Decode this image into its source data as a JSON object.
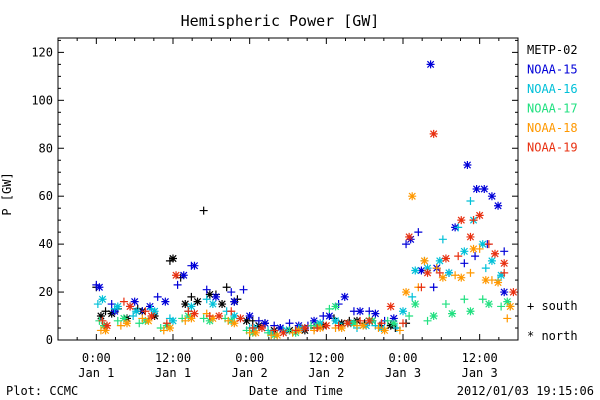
{
  "chart_data": {
    "type": "scatter",
    "title": "Hemispheric Power [GW]",
    "xlabel": "Date and Time",
    "ylabel": "P [GW]",
    "xlim": [
      -0.25,
      2.75
    ],
    "ylim": [
      0,
      126
    ],
    "grid": false,
    "legend_position": "right",
    "y_ticks": [
      {
        "value": 0,
        "label": "0"
      },
      {
        "value": 20,
        "label": "20"
      },
      {
        "value": 40,
        "label": "40"
      },
      {
        "value": 60,
        "label": "60"
      },
      {
        "value": 80,
        "label": "80"
      },
      {
        "value": 100,
        "label": "100"
      },
      {
        "value": 120,
        "label": "120"
      }
    ],
    "x_ticks": [
      {
        "value": 0.0,
        "line1": "0:00",
        "line2": "Jan 1"
      },
      {
        "value": 0.5,
        "line1": "12:00",
        "line2": "Jan 1"
      },
      {
        "value": 1.0,
        "line1": "0:00",
        "line2": "Jan 2"
      },
      {
        "value": 1.5,
        "line1": "12:00",
        "line2": "Jan 2"
      },
      {
        "value": 2.0,
        "line1": "0:00",
        "line2": "Jan 3"
      },
      {
        "value": 2.5,
        "line1": "12:00",
        "line2": "Jan 3"
      }
    ],
    "markers_legend": [
      {
        "symbol": "+",
        "label": "south"
      },
      {
        "symbol": "*",
        "label": "north"
      }
    ],
    "series": [
      {
        "name": "METP-02",
        "color": "#000000",
        "south": [
          [
            0.0,
            22
          ],
          [
            0.06,
            12
          ],
          [
            0.14,
            13
          ],
          [
            0.27,
            13
          ],
          [
            0.48,
            33
          ],
          [
            0.55,
            26
          ],
          [
            0.62,
            18
          ],
          [
            0.7,
            54
          ],
          [
            0.78,
            19
          ],
          [
            0.85,
            22
          ],
          [
            0.92,
            17
          ],
          [
            1.02,
            8
          ],
          [
            1.1,
            7
          ],
          [
            1.2,
            5
          ],
          [
            1.3,
            4
          ],
          [
            1.42,
            5
          ],
          [
            1.55,
            9
          ],
          [
            1.65,
            8
          ],
          [
            1.75,
            7
          ],
          [
            1.85,
            6
          ],
          [
            1.95,
            5
          ],
          [
            2.02,
            7
          ]
        ],
        "north": [
          [
            0.03,
            10
          ],
          [
            0.1,
            11
          ],
          [
            0.2,
            9
          ],
          [
            0.3,
            12
          ],
          [
            0.38,
            10
          ],
          [
            0.5,
            34
          ],
          [
            0.58,
            15
          ],
          [
            0.66,
            16
          ],
          [
            0.74,
            19
          ],
          [
            0.82,
            15
          ],
          [
            0.9,
            16
          ],
          [
            0.98,
            8
          ],
          [
            1.06,
            6
          ],
          [
            1.16,
            4
          ],
          [
            1.26,
            4
          ],
          [
            1.36,
            4
          ],
          [
            1.48,
            6
          ],
          [
            1.6,
            7
          ],
          [
            1.7,
            8
          ],
          [
            1.8,
            8
          ],
          [
            1.92,
            6
          ]
        ]
      },
      {
        "name": "NOAA-15",
        "color": "#0000d8",
        "south": [
          [
            0.0,
            23
          ],
          [
            0.1,
            15
          ],
          [
            0.22,
            14
          ],
          [
            0.3,
            12
          ],
          [
            0.4,
            18
          ],
          [
            0.53,
            23
          ],
          [
            0.62,
            31
          ],
          [
            0.72,
            21
          ],
          [
            0.88,
            20
          ],
          [
            0.96,
            21
          ],
          [
            1.06,
            8
          ],
          [
            1.16,
            6
          ],
          [
            1.26,
            7
          ],
          [
            1.38,
            6
          ],
          [
            1.48,
            10
          ],
          [
            1.58,
            15
          ],
          [
            1.68,
            12
          ],
          [
            1.78,
            12
          ],
          [
            1.88,
            8
          ],
          [
            2.02,
            40
          ],
          [
            2.1,
            45
          ],
          [
            2.2,
            22
          ],
          [
            2.3,
            28
          ],
          [
            2.4,
            32
          ],
          [
            2.47,
            35
          ],
          [
            2.55,
            40
          ],
          [
            2.66,
            37
          ]
        ],
        "north": [
          [
            0.02,
            22
          ],
          [
            0.12,
            12
          ],
          [
            0.25,
            16
          ],
          [
            0.35,
            14
          ],
          [
            0.45,
            16
          ],
          [
            0.57,
            27
          ],
          [
            0.64,
            31
          ],
          [
            0.78,
            18
          ],
          [
            0.9,
            16
          ],
          [
            1.0,
            10
          ],
          [
            1.1,
            7
          ],
          [
            1.2,
            5
          ],
          [
            1.32,
            6
          ],
          [
            1.42,
            8
          ],
          [
            1.52,
            10
          ],
          [
            1.62,
            18
          ],
          [
            1.72,
            12
          ],
          [
            1.82,
            11
          ],
          [
            1.94,
            9
          ],
          [
            2.05,
            42
          ],
          [
            2.12,
            29
          ],
          [
            2.18,
            115
          ],
          [
            2.22,
            30
          ],
          [
            2.34,
            47
          ],
          [
            2.42,
            73
          ],
          [
            2.48,
            63
          ],
          [
            2.53,
            63
          ],
          [
            2.58,
            60
          ],
          [
            2.62,
            56
          ],
          [
            2.66,
            20
          ]
        ]
      },
      {
        "name": "NOAA-16",
        "color": "#00c0d8",
        "south": [
          [
            0.01,
            15
          ],
          [
            0.12,
            13
          ],
          [
            0.24,
            10
          ],
          [
            0.36,
            13
          ],
          [
            0.48,
            9
          ],
          [
            0.6,
            12
          ],
          [
            0.72,
            17
          ],
          [
            0.85,
            12
          ],
          [
            1.0,
            5
          ],
          [
            1.12,
            4
          ],
          [
            1.22,
            4
          ],
          [
            1.32,
            5
          ],
          [
            1.45,
            6
          ],
          [
            1.58,
            7
          ],
          [
            1.7,
            5
          ],
          [
            1.82,
            6
          ],
          [
            1.96,
            5
          ],
          [
            2.06,
            18
          ],
          [
            2.14,
            33
          ],
          [
            2.26,
            42
          ],
          [
            2.36,
            47
          ],
          [
            2.44,
            58
          ],
          [
            2.54,
            30
          ],
          [
            2.62,
            25
          ],
          [
            2.7,
            14
          ]
        ],
        "north": [
          [
            0.04,
            17
          ],
          [
            0.14,
            14
          ],
          [
            0.26,
            12
          ],
          [
            0.38,
            12
          ],
          [
            0.5,
            8
          ],
          [
            0.62,
            14
          ],
          [
            0.76,
            15
          ],
          [
            0.9,
            10
          ],
          [
            1.03,
            5
          ],
          [
            1.14,
            3
          ],
          [
            1.24,
            4
          ],
          [
            1.34,
            5
          ],
          [
            1.46,
            7
          ],
          [
            1.56,
            8
          ],
          [
            1.66,
            7
          ],
          [
            1.76,
            6
          ],
          [
            1.86,
            5
          ],
          [
            2.0,
            12
          ],
          [
            2.08,
            29
          ],
          [
            2.16,
            30
          ],
          [
            2.24,
            33
          ],
          [
            2.3,
            28
          ],
          [
            2.4,
            37
          ],
          [
            2.46,
            50
          ],
          [
            2.52,
            40
          ],
          [
            2.58,
            33
          ],
          [
            2.64,
            27
          ]
        ]
      },
      {
        "name": "NOAA-17",
        "color": "#20e080",
        "south": [
          [
            0.02,
            8
          ],
          [
            0.14,
            8
          ],
          [
            0.28,
            7
          ],
          [
            0.42,
            5
          ],
          [
            0.56,
            9
          ],
          [
            0.7,
            9
          ],
          [
            0.84,
            9
          ],
          [
            0.98,
            4
          ],
          [
            1.12,
            3
          ],
          [
            1.26,
            4
          ],
          [
            1.4,
            6
          ],
          [
            1.52,
            13
          ],
          [
            1.64,
            7
          ],
          [
            1.78,
            9
          ],
          [
            1.9,
            8
          ],
          [
            2.04,
            10
          ],
          [
            2.16,
            8
          ],
          [
            2.28,
            15
          ],
          [
            2.4,
            17
          ],
          [
            2.52,
            17
          ],
          [
            2.64,
            14
          ]
        ],
        "north": [
          [
            0.05,
            6
          ],
          [
            0.18,
            9
          ],
          [
            0.32,
            8
          ],
          [
            0.46,
            6
          ],
          [
            0.6,
            10
          ],
          [
            0.74,
            8
          ],
          [
            0.88,
            8
          ],
          [
            1.02,
            3
          ],
          [
            1.16,
            2
          ],
          [
            1.3,
            3
          ],
          [
            1.44,
            6
          ],
          [
            1.56,
            14
          ],
          [
            1.68,
            7
          ],
          [
            1.8,
            8
          ],
          [
            1.94,
            7
          ],
          [
            2.08,
            15
          ],
          [
            2.2,
            10
          ],
          [
            2.32,
            11
          ],
          [
            2.44,
            12
          ],
          [
            2.56,
            15
          ],
          [
            2.68,
            16
          ]
        ]
      },
      {
        "name": "NOAA-18",
        "color": "#ff9800",
        "south": [
          [
            0.03,
            4
          ],
          [
            0.16,
            6
          ],
          [
            0.3,
            9
          ],
          [
            0.44,
            4
          ],
          [
            0.58,
            8
          ],
          [
            0.72,
            11
          ],
          [
            0.86,
            8
          ],
          [
            1.0,
            3
          ],
          [
            1.14,
            2
          ],
          [
            1.28,
            3
          ],
          [
            1.42,
            4
          ],
          [
            1.56,
            5
          ],
          [
            1.7,
            6
          ],
          [
            1.84,
            5
          ],
          [
            1.98,
            4
          ],
          [
            2.1,
            22
          ],
          [
            2.22,
            30
          ],
          [
            2.34,
            27
          ],
          [
            2.44,
            28
          ],
          [
            2.5,
            38
          ],
          [
            2.58,
            25
          ],
          [
            2.68,
            9
          ]
        ],
        "north": [
          [
            0.06,
            4
          ],
          [
            0.2,
            7
          ],
          [
            0.34,
            8
          ],
          [
            0.48,
            5
          ],
          [
            0.62,
            9
          ],
          [
            0.76,
            9
          ],
          [
            0.9,
            7
          ],
          [
            1.04,
            3
          ],
          [
            1.18,
            2
          ],
          [
            1.32,
            4
          ],
          [
            1.46,
            5
          ],
          [
            1.6,
            5
          ],
          [
            1.74,
            6
          ],
          [
            1.88,
            4
          ],
          [
            2.02,
            20
          ],
          [
            2.06,
            60
          ],
          [
            2.14,
            33
          ],
          [
            2.26,
            26
          ],
          [
            2.38,
            26
          ],
          [
            2.46,
            38
          ],
          [
            2.54,
            25
          ],
          [
            2.62,
            24
          ],
          [
            2.7,
            14
          ]
        ]
      },
      {
        "name": "NOAA-19",
        "color": "#e83010",
        "south": [
          [
            0.04,
            8
          ],
          [
            0.18,
            16
          ],
          [
            0.32,
            12
          ],
          [
            0.46,
            7
          ],
          [
            0.6,
            12
          ],
          [
            0.74,
            10
          ],
          [
            0.88,
            12
          ],
          [
            1.02,
            5
          ],
          [
            1.16,
            4
          ],
          [
            1.3,
            4
          ],
          [
            1.44,
            5
          ],
          [
            1.58,
            6
          ],
          [
            1.72,
            8
          ],
          [
            1.86,
            7
          ],
          [
            2.0,
            7
          ],
          [
            2.12,
            22
          ],
          [
            2.24,
            28
          ],
          [
            2.36,
            35
          ],
          [
            2.46,
            50
          ],
          [
            2.56,
            40
          ],
          [
            2.66,
            28
          ]
        ],
        "north": [
          [
            0.07,
            6
          ],
          [
            0.22,
            14
          ],
          [
            0.36,
            10
          ],
          [
            0.52,
            27
          ],
          [
            0.64,
            11
          ],
          [
            0.8,
            10
          ],
          [
            0.94,
            9
          ],
          [
            1.08,
            5
          ],
          [
            1.22,
            3
          ],
          [
            1.36,
            5
          ],
          [
            1.5,
            6
          ],
          [
            1.64,
            7
          ],
          [
            1.78,
            8
          ],
          [
            1.92,
            14
          ],
          [
            2.04,
            43
          ],
          [
            2.16,
            28
          ],
          [
            2.2,
            86
          ],
          [
            2.28,
            34
          ],
          [
            2.38,
            50
          ],
          [
            2.44,
            43
          ],
          [
            2.5,
            52
          ],
          [
            2.6,
            36
          ],
          [
            2.66,
            32
          ],
          [
            2.72,
            20
          ]
        ]
      }
    ]
  },
  "footer": {
    "plot_credit": "Plot: CCMC",
    "timestamp": "2012/01/03 19:15:06"
  }
}
